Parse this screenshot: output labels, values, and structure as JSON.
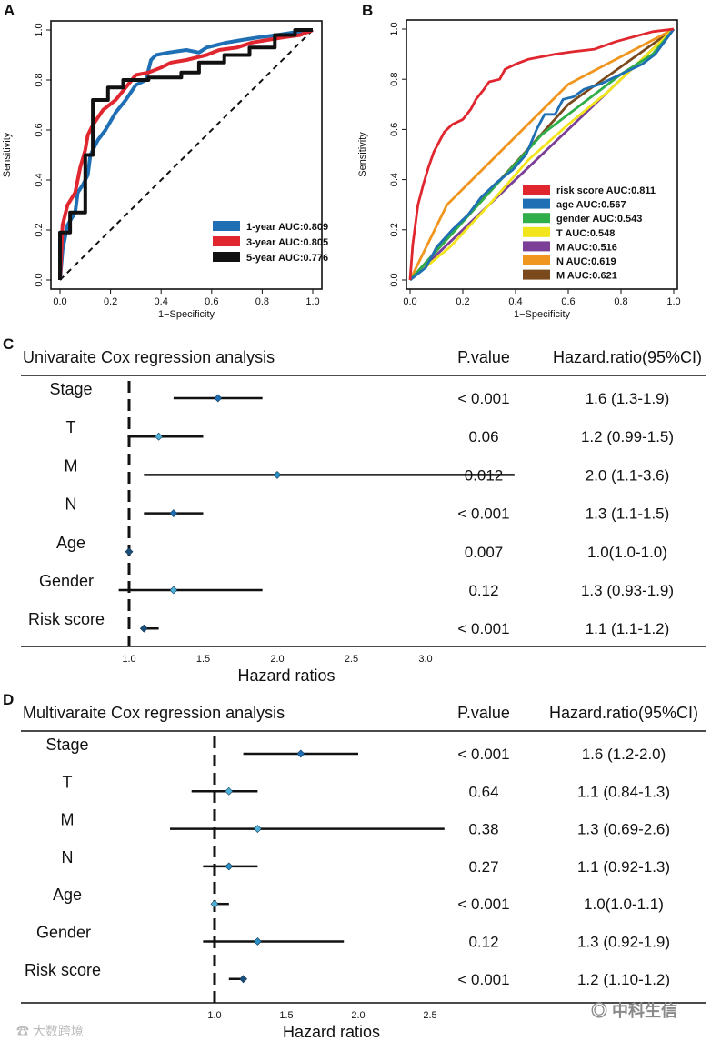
{
  "chart_data": [
    {
      "id": "A",
      "type": "line",
      "panel_label": "A",
      "xlabel": "1−Specificity",
      "ylabel": "Sensitivity",
      "xlim": [
        0,
        1
      ],
      "ylim": [
        0,
        1
      ],
      "xticks": [
        "0.0",
        "0.2",
        "0.4",
        "0.6",
        "0.8",
        "1.0"
      ],
      "yticks": [
        "0.0",
        "0.2",
        "0.4",
        "0.6",
        "0.8",
        "1.0"
      ],
      "legend_position": "bottom-right",
      "series": [
        {
          "name": "1-year  AUC:0.809",
          "color": "#1f6fb5",
          "points": [
            [
              0,
              0
            ],
            [
              0.01,
              0.12
            ],
            [
              0.03,
              0.22
            ],
            [
              0.06,
              0.27
            ],
            [
              0.07,
              0.35
            ],
            [
              0.09,
              0.38
            ],
            [
              0.11,
              0.42
            ],
            [
              0.12,
              0.5
            ],
            [
              0.15,
              0.56
            ],
            [
              0.18,
              0.6
            ],
            [
              0.22,
              0.67
            ],
            [
              0.26,
              0.72
            ],
            [
              0.3,
              0.78
            ],
            [
              0.34,
              0.8
            ],
            [
              0.36,
              0.88
            ],
            [
              0.38,
              0.9
            ],
            [
              0.43,
              0.91
            ],
            [
              0.5,
              0.92
            ],
            [
              0.55,
              0.91
            ],
            [
              0.58,
              0.93
            ],
            [
              0.62,
              0.94
            ],
            [
              0.66,
              0.95
            ],
            [
              0.72,
              0.96
            ],
            [
              0.78,
              0.97
            ],
            [
              0.86,
              0.98
            ],
            [
              0.92,
              0.99
            ],
            [
              1,
              1
            ]
          ]
        },
        {
          "name": "3-year  AUC:0.805",
          "color": "#e0262e",
          "points": [
            [
              0,
              0
            ],
            [
              0.01,
              0.22
            ],
            [
              0.03,
              0.3
            ],
            [
              0.06,
              0.35
            ],
            [
              0.08,
              0.45
            ],
            [
              0.1,
              0.52
            ],
            [
              0.11,
              0.58
            ],
            [
              0.13,
              0.62
            ],
            [
              0.17,
              0.68
            ],
            [
              0.22,
              0.72
            ],
            [
              0.26,
              0.77
            ],
            [
              0.3,
              0.82
            ],
            [
              0.35,
              0.83
            ],
            [
              0.4,
              0.85
            ],
            [
              0.44,
              0.87
            ],
            [
              0.5,
              0.88
            ],
            [
              0.58,
              0.9
            ],
            [
              0.63,
              0.92
            ],
            [
              0.7,
              0.93
            ],
            [
              0.76,
              0.95
            ],
            [
              0.82,
              0.96
            ],
            [
              0.88,
              0.97
            ],
            [
              0.95,
              0.98
            ],
            [
              1,
              1
            ]
          ]
        },
        {
          "name": "5-year  AUC:0.776",
          "color": "#111111",
          "points": [
            [
              0,
              0
            ],
            [
              0,
              0.19
            ],
            [
              0.04,
              0.19
            ],
            [
              0.04,
              0.27
            ],
            [
              0.1,
              0.27
            ],
            [
              0.1,
              0.5
            ],
            [
              0.13,
              0.5
            ],
            [
              0.13,
              0.72
            ],
            [
              0.19,
              0.72
            ],
            [
              0.19,
              0.77
            ],
            [
              0.25,
              0.77
            ],
            [
              0.25,
              0.8
            ],
            [
              0.35,
              0.8
            ],
            [
              0.35,
              0.81
            ],
            [
              0.48,
              0.81
            ],
            [
              0.48,
              0.83
            ],
            [
              0.55,
              0.83
            ],
            [
              0.55,
              0.87
            ],
            [
              0.65,
              0.87
            ],
            [
              0.65,
              0.9
            ],
            [
              0.75,
              0.9
            ],
            [
              0.75,
              0.93
            ],
            [
              0.85,
              0.93
            ],
            [
              0.85,
              0.98
            ],
            [
              0.93,
              0.98
            ],
            [
              0.93,
              1
            ],
            [
              1,
              1
            ]
          ]
        }
      ],
      "reference_line": "diagonal dashed"
    },
    {
      "id": "B",
      "type": "line",
      "panel_label": "B",
      "xlabel": "1−Specificity",
      "ylabel": "Sensitivity",
      "xlim": [
        0,
        1
      ],
      "ylim": [
        0,
        1
      ],
      "xticks": [
        "0.0",
        "0.2",
        "0.4",
        "0.6",
        "0.8",
        "1.0"
      ],
      "yticks": [
        "0.0",
        "0.2",
        "0.4",
        "0.6",
        "0.8",
        "1.0"
      ],
      "legend_position": "bottom-right",
      "series": [
        {
          "name": "risk score AUC:0.811",
          "color": "#e0262e",
          "points": [
            [
              0,
              0
            ],
            [
              0.01,
              0.14
            ],
            [
              0.02,
              0.22
            ],
            [
              0.03,
              0.3
            ],
            [
              0.05,
              0.38
            ],
            [
              0.07,
              0.45
            ],
            [
              0.09,
              0.51
            ],
            [
              0.11,
              0.55
            ],
            [
              0.13,
              0.59
            ],
            [
              0.16,
              0.62
            ],
            [
              0.2,
              0.64
            ],
            [
              0.23,
              0.68
            ],
            [
              0.25,
              0.72
            ],
            [
              0.28,
              0.76
            ],
            [
              0.3,
              0.79
            ],
            [
              0.34,
              0.8
            ],
            [
              0.36,
              0.84
            ],
            [
              0.4,
              0.86
            ],
            [
              0.45,
              0.88
            ],
            [
              0.5,
              0.89
            ],
            [
              0.55,
              0.9
            ],
            [
              0.62,
              0.91
            ],
            [
              0.7,
              0.92
            ],
            [
              0.78,
              0.95
            ],
            [
              0.85,
              0.97
            ],
            [
              0.92,
              0.99
            ],
            [
              1,
              1
            ]
          ]
        },
        {
          "name": "age AUC:0.567",
          "color": "#1f6fb5",
          "points": [
            [
              0,
              0
            ],
            [
              0.06,
              0.05
            ],
            [
              0.1,
              0.13
            ],
            [
              0.16,
              0.2
            ],
            [
              0.22,
              0.26
            ],
            [
              0.27,
              0.33
            ],
            [
              0.33,
              0.39
            ],
            [
              0.39,
              0.44
            ],
            [
              0.44,
              0.5
            ],
            [
              0.48,
              0.6
            ],
            [
              0.51,
              0.66
            ],
            [
              0.55,
              0.66
            ],
            [
              0.58,
              0.72
            ],
            [
              0.62,
              0.73
            ],
            [
              0.66,
              0.76
            ],
            [
              0.72,
              0.78
            ],
            [
              0.8,
              0.82
            ],
            [
              0.88,
              0.86
            ],
            [
              0.93,
              0.9
            ],
            [
              1,
              1
            ]
          ]
        },
        {
          "name": "gender AUC:0.543",
          "color": "#2fae49",
          "points": [
            [
              0,
              0
            ],
            [
              0.5,
              0.58
            ],
            [
              0.65,
              0.7
            ],
            [
              0.8,
              0.82
            ],
            [
              0.92,
              0.9
            ],
            [
              1,
              1
            ]
          ]
        },
        {
          "name": "T AUC:0.548",
          "color": "#f2e51b",
          "points": [
            [
              0,
              0
            ],
            [
              0.15,
              0.13
            ],
            [
              0.3,
              0.3
            ],
            [
              0.45,
              0.48
            ],
            [
              0.6,
              0.62
            ],
            [
              0.75,
              0.75
            ],
            [
              0.9,
              0.9
            ],
            [
              1,
              1
            ]
          ]
        },
        {
          "name": "M AUC:0.516",
          "color": "#7b3f98",
          "points": [
            [
              0,
              0
            ],
            [
              0.08,
              0.08
            ],
            [
              1,
              1
            ]
          ]
        },
        {
          "name": "N AUC:0.619",
          "color": "#f0961e",
          "points": [
            [
              0,
              0
            ],
            [
              0.14,
              0.3
            ],
            [
              0.6,
              0.78
            ],
            [
              1,
              1
            ]
          ]
        },
        {
          "name": "M AUC:0.621",
          "color": "#7a4a1c",
          "points": [
            [
              0,
              0
            ],
            [
              0.6,
              0.7
            ],
            [
              1,
              1
            ]
          ]
        }
      ],
      "reference_line": "diagonal solid"
    },
    {
      "id": "C",
      "type": "scatter",
      "panel_label": "C",
      "title": "Univaraite Cox regression analysis",
      "columns": {
        "pvalue": "P.value",
        "hr": "Hazard.ratio(95%CI)"
      },
      "xlabel": "Hazard ratios",
      "xticks": [
        "1.0",
        "1.5",
        "2.0",
        "2.5",
        "3.0"
      ],
      "reference_value": 1.0,
      "rows": [
        {
          "label": "Stage",
          "hr": 1.6,
          "lo": 1.3,
          "hi": 1.9,
          "color": "#1f6fb5",
          "p": "< 0.001",
          "text": "1.6 (1.3-1.9)"
        },
        {
          "label": "T",
          "hr": 1.2,
          "lo": 0.99,
          "hi": 1.5,
          "color": "#4fb3d9",
          "p": "0.06",
          "text": "1.2 (0.99-1.5)"
        },
        {
          "label": "M",
          "hr": 2.0,
          "lo": 1.1,
          "hi": 3.6,
          "color": "#2a8fc4",
          "p": "0.012",
          "text": "2.0 (1.1-3.6)"
        },
        {
          "label": "N",
          "hr": 1.3,
          "lo": 1.1,
          "hi": 1.5,
          "color": "#1f6fb5",
          "p": "< 0.001",
          "text": "1.3 (1.1-1.5)"
        },
        {
          "label": "Age",
          "hr": 1.0,
          "lo": 1.0,
          "hi": 1.0,
          "color": "#1a4f7a",
          "p": "0.007",
          "text": "1.0(1.0-1.0)"
        },
        {
          "label": "Gender",
          "hr": 1.3,
          "lo": 0.93,
          "hi": 1.9,
          "color": "#4fb3d9",
          "p": "0.12",
          "text": "1.3 (0.93-1.9)"
        },
        {
          "label": "Risk score",
          "hr": 1.1,
          "lo": 1.1,
          "hi": 1.2,
          "color": "#1a4f7a",
          "p": "< 0.001",
          "text": "1.1 (1.1-1.2)"
        }
      ]
    },
    {
      "id": "D",
      "type": "scatter",
      "panel_label": "D",
      "title": "Multivaraite Cox regression analysis",
      "columns": {
        "pvalue": "P.value",
        "hr": "Hazard.ratio(95%CI)"
      },
      "xlabel": "Hazard ratios",
      "xticks": [
        "1.0",
        "1.5",
        "2.0",
        "2.5"
      ],
      "reference_value": 1.0,
      "rows": [
        {
          "label": "Stage",
          "hr": 1.6,
          "lo": 1.2,
          "hi": 2.0,
          "color": "#1f6fb5",
          "p": "< 0.001",
          "text": "1.6 (1.2-2.0)"
        },
        {
          "label": "T",
          "hr": 1.1,
          "lo": 0.84,
          "hi": 1.3,
          "color": "#4fb3d9",
          "p": "0.64",
          "text": "1.1 (0.84-1.3)"
        },
        {
          "label": "M",
          "hr": 1.3,
          "lo": 0.69,
          "hi": 2.6,
          "color": "#4fb3d9",
          "p": "0.38",
          "text": "1.3 (0.69-2.6)"
        },
        {
          "label": "N",
          "hr": 1.1,
          "lo": 0.92,
          "hi": 1.3,
          "color": "#2a8fc4",
          "p": "0.27",
          "text": "1.1 (0.92-1.3)"
        },
        {
          "label": "Age",
          "hr": 1.0,
          "lo": 1.0,
          "hi": 1.1,
          "color": "#4fb3d9",
          "p": "< 0.001",
          "text": "1.0(1.0-1.1)"
        },
        {
          "label": "Gender",
          "hr": 1.3,
          "lo": 0.92,
          "hi": 1.9,
          "color": "#2a8fc4",
          "p": "0.12",
          "text": "1.3 (0.92-1.9)"
        },
        {
          "label": "Risk score",
          "hr": 1.2,
          "lo": 1.1,
          "hi": 1.2,
          "color": "#1a4f7a",
          "p": "< 0.001",
          "text": "1.2 (1.10-1.2)"
        }
      ]
    }
  ],
  "watermarks": {
    "left": "大数跨境",
    "right": "中科生信"
  }
}
